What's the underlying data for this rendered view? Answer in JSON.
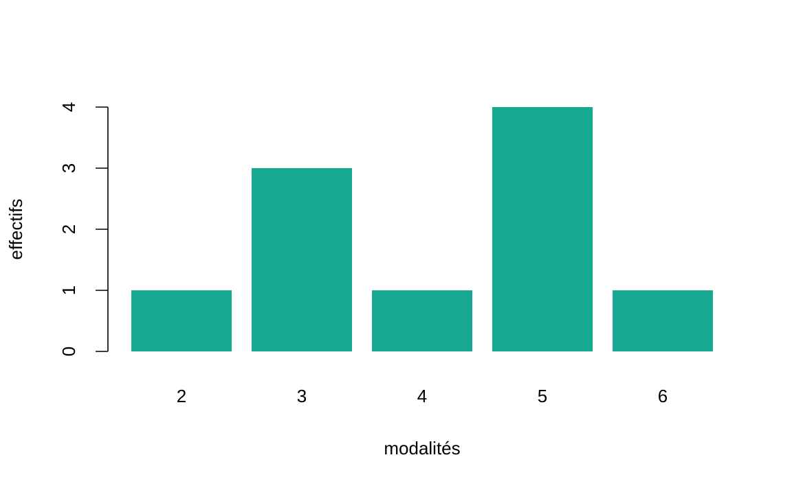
{
  "chart_data": {
    "type": "bar",
    "categories": [
      "2",
      "3",
      "4",
      "5",
      "6"
    ],
    "values": [
      1,
      3,
      1,
      4,
      1
    ],
    "title": "",
    "xlabel": "modalités",
    "ylabel": "effectifs",
    "ylim": [
      0,
      4
    ],
    "yticks": [
      0,
      1,
      2,
      3,
      4
    ],
    "bar_color": "#17A891",
    "grid": false,
    "legend": "none"
  }
}
